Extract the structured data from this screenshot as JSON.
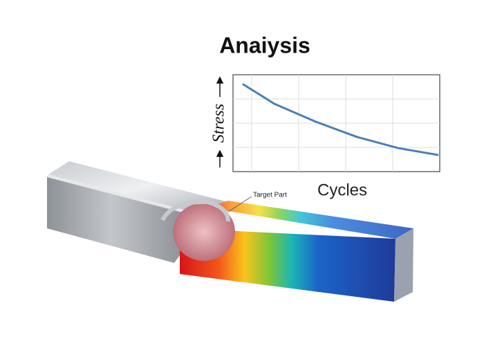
{
  "chart_data": {
    "type": "line",
    "title": "Anaiysis",
    "x_label": "Cycles",
    "y_label": "Stress",
    "annotation": "Target Part",
    "x": [
      0.5,
      2,
      4,
      6,
      8,
      9.9
    ],
    "series": [
      {
        "color": "#4a7fb5",
        "values": [
          3.6,
          2.8,
          2.06,
          1.43,
          0.97,
          0.69
        ]
      }
    ],
    "xlim": [
      0,
      10
    ],
    "ylim": [
      0,
      4
    ],
    "grid": true
  }
}
